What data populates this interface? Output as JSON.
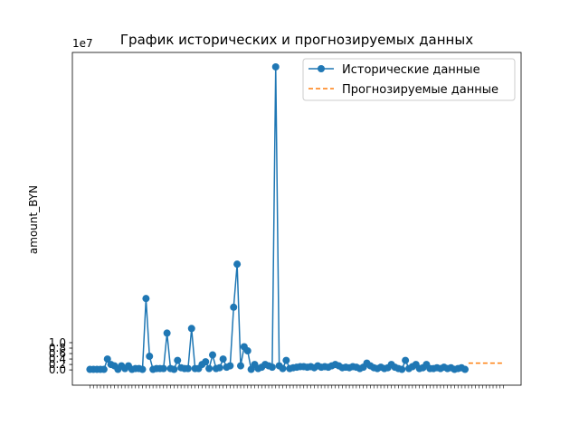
{
  "chart_data": {
    "type": "line",
    "title": "График исторических и прогнозируемых данных",
    "xlabel": "",
    "ylabel": "amount_BYN",
    "y_scale_label": "1e7",
    "ylim": [
      -0.56,
      11.65
    ],
    "y_ticks": [
      0.0,
      0.2,
      0.4,
      0.6,
      0.8,
      1.0
    ],
    "y_tick_labels": [
      "0.0",
      "0.2",
      "0.4",
      "0.6",
      "0.8",
      "1.0"
    ],
    "y_unit_multiplier": 10000000,
    "grid": false,
    "legend_position": "top-right",
    "series": [
      {
        "name": "Исторические данные",
        "style": "solid-with-markers",
        "color": "#1f77b4",
        "values": [
          0.02,
          0.02,
          0.02,
          0.02,
          0.02,
          0.4,
          0.2,
          0.15,
          0.02,
          0.15,
          0.05,
          0.15,
          0.02,
          0.05,
          0.05,
          0.02,
          2.62,
          0.5,
          0.02,
          0.05,
          0.05,
          0.05,
          1.35,
          0.05,
          0.02,
          0.35,
          0.08,
          0.05,
          0.05,
          1.52,
          0.05,
          0.05,
          0.2,
          0.3,
          0.05,
          0.55,
          0.05,
          0.08,
          0.4,
          0.1,
          0.15,
          2.3,
          3.88,
          0.15,
          0.85,
          0.7,
          0.02,
          0.2,
          0.05,
          0.1,
          0.2,
          0.15,
          0.1,
          11.12,
          0.15,
          0.05,
          0.35,
          0.05,
          0.08,
          0.1,
          0.12,
          0.12,
          0.1,
          0.12,
          0.08,
          0.15,
          0.1,
          0.12,
          0.1,
          0.15,
          0.2,
          0.15,
          0.08,
          0.1,
          0.08,
          0.12,
          0.1,
          0.05,
          0.1,
          0.25,
          0.15,
          0.08,
          0.05,
          0.1,
          0.05,
          0.08,
          0.2,
          0.1,
          0.05,
          0.02,
          0.35,
          0.05,
          0.12,
          0.2,
          0.05,
          0.08,
          0.2,
          0.05,
          0.05,
          0.08,
          0.05,
          0.1,
          0.05,
          0.08,
          0.02,
          0.05,
          0.08,
          0.02
        ]
      },
      {
        "name": "Прогнозируемые данные",
        "style": "dashed",
        "color": "#ff7f0e",
        "x_start_index": 108,
        "values": [
          0.25,
          0.25,
          0.25,
          0.25,
          0.25,
          0.25,
          0.25,
          0.25,
          0.25,
          0.25,
          0.25
        ]
      }
    ]
  }
}
